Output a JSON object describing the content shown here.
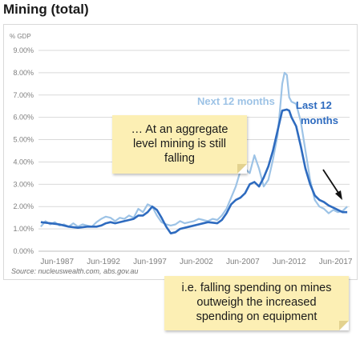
{
  "chart_data": {
    "type": "line",
    "title": "Mining (total)",
    "ylabel": "% GDP",
    "ylim": [
      0,
      9
    ],
    "yticks": [
      "0.00%",
      "1.00%",
      "2.00%",
      "3.00%",
      "4.00%",
      "5.00%",
      "6.00%",
      "7.00%",
      "8.00%",
      "9.00%"
    ],
    "xlim": [
      1985.5,
      2019
    ],
    "xticks": [
      {
        "x": 1987.5,
        "label": "Jun-1987"
      },
      {
        "x": 1992.5,
        "label": "Jun-1992"
      },
      {
        "x": 1997.5,
        "label": "Jun-1997"
      },
      {
        "x": 2002.5,
        "label": "Jun-2002"
      },
      {
        "x": 2007.5,
        "label": "Jun-2007"
      },
      {
        "x": 2012.5,
        "label": "Jun-2012"
      },
      {
        "x": 2017.5,
        "label": "Jun-2017"
      }
    ],
    "grid": true,
    "source": "Source: nucleuswealth.com, abs.gov.au",
    "series": [
      {
        "name": "Next 12 months",
        "color": "#9dc3e6",
        "x": [
          1985.75,
          1986.25,
          1986.75,
          1987.25,
          1987.75,
          1988.25,
          1988.75,
          1989.25,
          1989.75,
          1990.25,
          1990.75,
          1991.25,
          1991.75,
          1992.25,
          1992.75,
          1993.25,
          1993.75,
          1994.25,
          1994.75,
          1995.25,
          1995.75,
          1996.25,
          1996.75,
          1997.25,
          1997.75,
          1998.25,
          1998.75,
          1999.25,
          1999.75,
          2000.25,
          2000.75,
          2001.25,
          2001.75,
          2002.25,
          2002.75,
          2003.25,
          2003.75,
          2004.25,
          2004.75,
          2005.25,
          2005.75,
          2006.25,
          2006.75,
          2007.25,
          2007.75,
          2008.25,
          2008.75,
          2009.25,
          2009.75,
          2010.25,
          2010.75,
          2011.25,
          2011.5,
          2011.75,
          2012.0,
          2012.25,
          2012.5,
          2012.75,
          2013.25,
          2013.75,
          2014.25,
          2014.75,
          2015.25,
          2015.75,
          2016.25,
          2016.75,
          2017.25,
          2017.75,
          2018.25,
          2018.75
        ],
        "values": [
          1.1,
          1.35,
          1.2,
          1.3,
          1.15,
          1.2,
          1.1,
          1.25,
          1.1,
          1.2,
          1.15,
          1.1,
          1.3,
          1.45,
          1.55,
          1.5,
          1.35,
          1.5,
          1.45,
          1.6,
          1.5,
          1.9,
          1.75,
          2.1,
          2.0,
          1.6,
          1.3,
          1.2,
          1.15,
          1.2,
          1.35,
          1.25,
          1.3,
          1.35,
          1.45,
          1.4,
          1.35,
          1.45,
          1.4,
          1.6,
          1.9,
          2.4,
          2.9,
          3.6,
          3.7,
          3.5,
          4.3,
          3.7,
          2.9,
          3.2,
          4.1,
          5.2,
          6.3,
          7.5,
          8.0,
          7.9,
          6.9,
          6.7,
          6.6,
          5.8,
          4.5,
          3.2,
          2.3,
          2.0,
          1.9,
          1.7,
          1.85,
          1.75,
          1.8,
          2.0
        ]
      },
      {
        "name": "Last 12 months",
        "color": "#2e6bbf",
        "x": [
          1985.75,
          1986.75,
          1987.75,
          1988.75,
          1989.75,
          1990.75,
          1991.75,
          1992.25,
          1992.75,
          1993.25,
          1993.75,
          1994.75,
          1995.75,
          1996.25,
          1996.75,
          1997.25,
          1997.75,
          1998.25,
          1998.75,
          1999.25,
          1999.75,
          2000.25,
          2000.75,
          2001.75,
          2002.75,
          2003.75,
          2004.75,
          2005.25,
          2005.75,
          2006.25,
          2006.75,
          2007.25,
          2007.75,
          2008.25,
          2008.75,
          2009.25,
          2009.75,
          2010.25,
          2010.75,
          2011.25,
          2011.75,
          2012.25,
          2012.5,
          2012.75,
          2013.25,
          2013.75,
          2014.25,
          2014.75,
          2015.25,
          2015.75,
          2016.25,
          2016.75,
          2017.25,
          2017.75,
          2018.25,
          2018.75
        ],
        "values": [
          1.3,
          1.25,
          1.2,
          1.1,
          1.05,
          1.1,
          1.1,
          1.15,
          1.25,
          1.3,
          1.25,
          1.35,
          1.45,
          1.6,
          1.6,
          1.75,
          2.0,
          1.85,
          1.5,
          1.1,
          0.8,
          0.85,
          1.0,
          1.1,
          1.2,
          1.3,
          1.25,
          1.4,
          1.7,
          2.1,
          2.3,
          2.4,
          2.6,
          3.0,
          3.1,
          2.9,
          3.3,
          3.8,
          4.5,
          5.4,
          6.3,
          6.35,
          6.3,
          6.0,
          5.6,
          4.7,
          3.7,
          3.0,
          2.5,
          2.3,
          2.2,
          2.05,
          1.95,
          1.85,
          1.75,
          1.75
        ]
      }
    ],
    "annotations": [
      {
        "text": "Next 12 months",
        "color": "#9dc3e6"
      },
      {
        "text": "Last 12",
        "color": "#2e6bbf"
      },
      {
        "text": "months",
        "color": "#2e6bbf"
      }
    ]
  },
  "notes": {
    "top": [
      "… At an aggregate",
      "level mining is still",
      "falling"
    ],
    "bottom": [
      "i.e. falling spending on mines",
      "outweigh the increased",
      "spending on equipment"
    ]
  }
}
